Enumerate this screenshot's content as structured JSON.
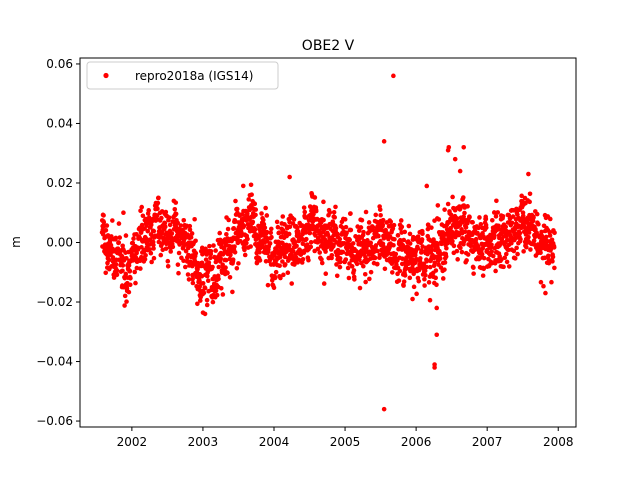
{
  "chart_data": {
    "type": "scatter",
    "title": "OBE2 V",
    "xlabel": "",
    "ylabel": "m",
    "xlim": [
      2001.27,
      2008.25
    ],
    "ylim": [
      -0.062,
      0.062
    ],
    "x_ticks": [
      2002,
      2003,
      2004,
      2005,
      2006,
      2007,
      2008
    ],
    "x_tick_labels": [
      "2002",
      "2003",
      "2004",
      "2005",
      "2006",
      "2007",
      "2008"
    ],
    "y_ticks": [
      -0.06,
      -0.04,
      -0.02,
      0.0,
      0.02,
      0.04,
      0.06
    ],
    "y_tick_labels": [
      "−0.06",
      "−0.04",
      "−0.02",
      "0.00",
      "0.02",
      "0.04",
      "0.06"
    ],
    "grid": false,
    "legend_position": "top-left",
    "series": [
      {
        "name": "repro2018a (IGS14)",
        "color": "#ff0000",
        "marker": "dot",
        "x_start": 2001.58,
        "x_end": 2007.95,
        "baseline_y": [
          [
            2001.58,
            0.002
          ],
          [
            2001.7,
            -0.001
          ],
          [
            2001.85,
            -0.004
          ],
          [
            2002.0,
            -0.006
          ],
          [
            2002.1,
            0.002
          ],
          [
            2002.3,
            0.004
          ],
          [
            2002.5,
            0.003
          ],
          [
            2002.7,
            0.004
          ],
          [
            2002.85,
            -0.004
          ],
          [
            2003.0,
            -0.01
          ],
          [
            2003.15,
            -0.008
          ],
          [
            2003.3,
            -0.003
          ],
          [
            2003.5,
            0.004
          ],
          [
            2003.7,
            0.006
          ],
          [
            2003.85,
            0.0
          ],
          [
            2004.0,
            -0.005
          ],
          [
            2004.2,
            -0.004
          ],
          [
            2004.4,
            -0.001
          ],
          [
            2004.55,
            0.004
          ],
          [
            2004.75,
            0.003
          ],
          [
            2004.9,
            0.0
          ],
          [
            2005.1,
            -0.002
          ],
          [
            2005.3,
            -0.002
          ],
          [
            2005.5,
            0.001
          ],
          [
            2005.7,
            -0.003
          ],
          [
            2005.85,
            -0.004
          ],
          [
            2006.0,
            -0.005
          ],
          [
            2006.2,
            -0.004
          ],
          [
            2006.4,
            0.0
          ],
          [
            2006.6,
            0.005
          ],
          [
            2006.8,
            0.003
          ],
          [
            2007.0,
            0.0
          ],
          [
            2007.2,
            0.002
          ],
          [
            2007.4,
            0.004
          ],
          [
            2007.6,
            0.005
          ],
          [
            2007.8,
            0.001
          ],
          [
            2007.95,
            -0.002
          ]
        ],
        "scatter_sd": 0.0045,
        "outliers": [
          {
            "x": 2005.68,
            "y": 0.056
          },
          {
            "x": 2005.55,
            "y": 0.034
          },
          {
            "x": 2005.55,
            "y": -0.056
          },
          {
            "x": 2006.29,
            "y": -0.022
          },
          {
            "x": 2006.29,
            "y": -0.031
          },
          {
            "x": 2006.26,
            "y": -0.041
          },
          {
            "x": 2006.26,
            "y": -0.042
          },
          {
            "x": 2006.46,
            "y": 0.032
          },
          {
            "x": 2006.45,
            "y": 0.031
          },
          {
            "x": 2006.67,
            "y": 0.032
          },
          {
            "x": 2006.55,
            "y": 0.028
          },
          {
            "x": 2006.62,
            "y": 0.024
          },
          {
            "x": 2004.22,
            "y": 0.022
          },
          {
            "x": 2007.58,
            "y": 0.023
          },
          {
            "x": 2003.03,
            "y": -0.024
          },
          {
            "x": 2003.06,
            "y": -0.021
          },
          {
            "x": 2005.95,
            "y": -0.019
          },
          {
            "x": 2006.15,
            "y": 0.019
          },
          {
            "x": 2007.82,
            "y": -0.017
          }
        ]
      }
    ]
  }
}
